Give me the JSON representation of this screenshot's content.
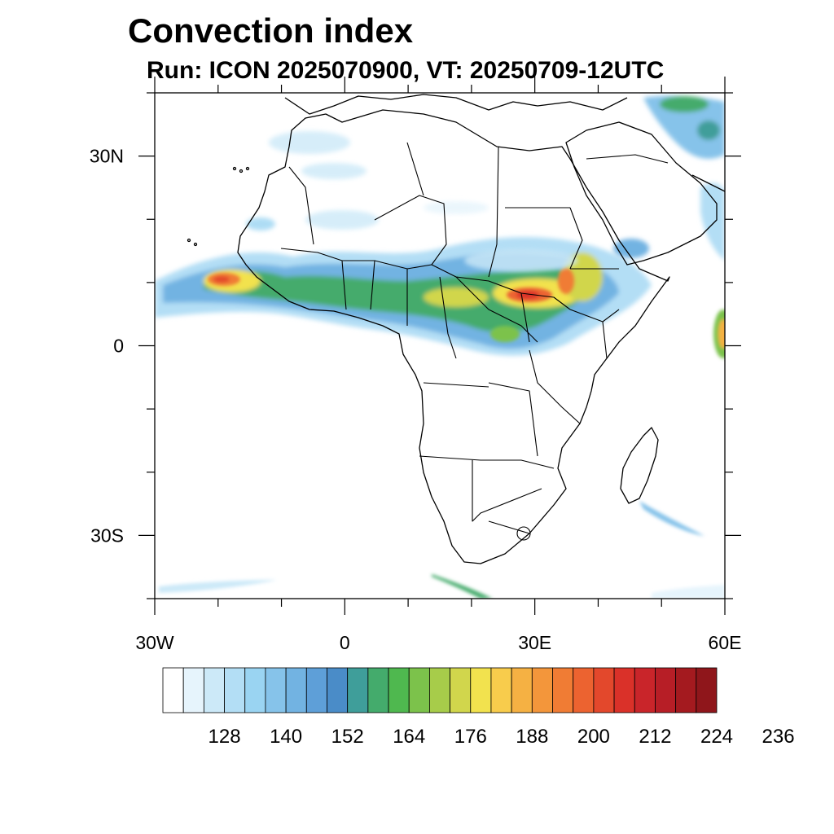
{
  "title": "Convection index",
  "subtitle": "Run: ICON 2025070900,  VT: 20250709-12UTC",
  "map": {
    "lon_range": [
      -30,
      60
    ],
    "lat_range": [
      -40,
      40
    ],
    "y_ticks": [
      {
        "lat": 30,
        "label": "30N"
      },
      {
        "lat": 0,
        "label": "0"
      },
      {
        "lat": -30,
        "label": "30S"
      }
    ],
    "x_ticks": [
      {
        "lon": -30,
        "label": "30W"
      },
      {
        "lon": 0,
        "label": "0"
      },
      {
        "lon": 30,
        "label": "30E"
      },
      {
        "lon": 60,
        "label": "60E"
      }
    ]
  },
  "colorbar": {
    "colors": [
      "#ffffff",
      "#e6f4fc",
      "#cce9f8",
      "#b3def5",
      "#9ad4f2",
      "#86c3ea",
      "#72b3e2",
      "#5e9fd8",
      "#4a8cc8",
      "#3f9e9a",
      "#44ab6c",
      "#4fb84f",
      "#7cc24b",
      "#a7cc4a",
      "#d1d64c",
      "#f2e24e",
      "#f8cc4c",
      "#f5b143",
      "#f3963b",
      "#f07c34",
      "#ec6330",
      "#e3482c",
      "#da3129",
      "#c9252a",
      "#b71e26",
      "#a41a1f",
      "#8f161b"
    ],
    "labels": [
      "128",
      "140",
      "152",
      "164",
      "176",
      "188",
      "200",
      "212",
      "224",
      "236"
    ]
  },
  "colors": {
    "frame": "#000000",
    "coast": "#000000"
  }
}
